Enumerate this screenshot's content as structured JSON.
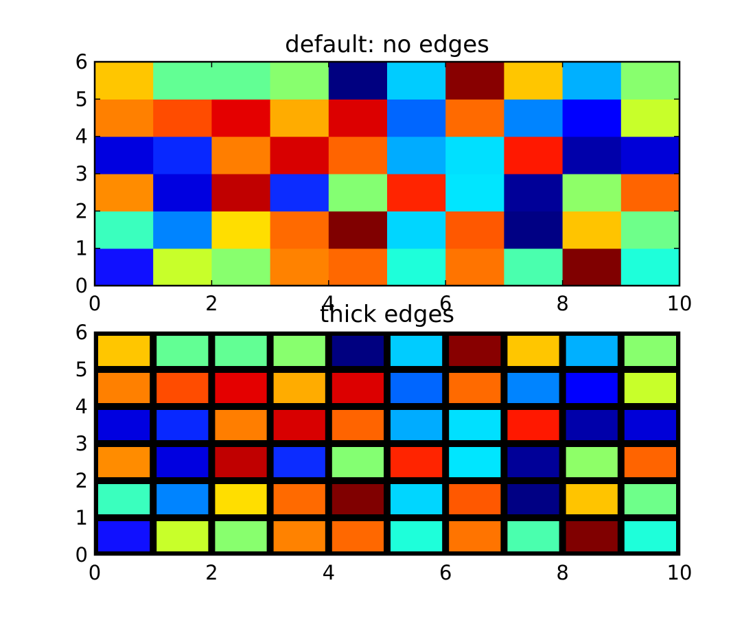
{
  "chart_data": [
    {
      "type": "heatmap",
      "title": "default: no edges",
      "xlabel": "",
      "ylabel": "",
      "xlim": [
        0,
        10
      ],
      "ylim": [
        0,
        6
      ],
      "xticks": [
        "0",
        "2",
        "4",
        "6",
        "8",
        "10"
      ],
      "yticks": [
        "0",
        "1",
        "2",
        "3",
        "4",
        "5",
        "6"
      ],
      "grid": false,
      "edges": "none",
      "rows": [
        [
          "#1010FF",
          "#C8FF2A",
          "#88FF6E",
          "#FF8200",
          "#FF6800",
          "#1EFFDA",
          "#FF7400",
          "#4AFFAE",
          "#800000",
          "#1EFFDA"
        ],
        [
          "#3AFFBE",
          "#0084FF",
          "#FFDE00",
          "#FF6A00",
          "#800000",
          "#00D6FF",
          "#FF5800",
          "#000084",
          "#FFC400",
          "#6EFF8A"
        ],
        [
          "#FF8C00",
          "#0000E0",
          "#C00000",
          "#0C2CFF",
          "#84FF72",
          "#FF2400",
          "#00E6FF",
          "#000098",
          "#8EFF68",
          "#FF6400"
        ],
        [
          "#0000E0",
          "#0828FF",
          "#FF7E00",
          "#D80000",
          "#FF6400",
          "#00ACFF",
          "#00E0FF",
          "#FF1800",
          "#0000AA",
          "#0000D8"
        ],
        [
          "#FF8000",
          "#FF4C00",
          "#E40000",
          "#FFAC00",
          "#DC0000",
          "#0066FF",
          "#FF6A00",
          "#0084FF",
          "#0000FF",
          "#C8FF2A"
        ],
        [
          "#FFC600",
          "#62FF94",
          "#62FF94",
          "#88FF6E",
          "#000080",
          "#00CCFF",
          "#880000",
          "#FFC600",
          "#00B0FF",
          "#88FF6E"
        ]
      ]
    },
    {
      "type": "heatmap",
      "title": "thick edges",
      "xlabel": "",
      "ylabel": "",
      "xlim": [
        0,
        10
      ],
      "ylim": [
        0,
        6
      ],
      "xticks": [
        "0",
        "2",
        "4",
        "6",
        "8",
        "10"
      ],
      "yticks": [
        "0",
        "1",
        "2",
        "3",
        "4",
        "5",
        "6"
      ],
      "grid": false,
      "edges": "thick black",
      "rows": [
        [
          "#1010FF",
          "#C8FF2A",
          "#88FF6E",
          "#FF8200",
          "#FF6800",
          "#1EFFDA",
          "#FF7400",
          "#4AFFAE",
          "#800000",
          "#1EFFDA"
        ],
        [
          "#3AFFBE",
          "#0084FF",
          "#FFDE00",
          "#FF6A00",
          "#800000",
          "#00D6FF",
          "#FF5800",
          "#000084",
          "#FFC400",
          "#6EFF8A"
        ],
        [
          "#FF8C00",
          "#0000E0",
          "#C00000",
          "#0C2CFF",
          "#84FF72",
          "#FF2400",
          "#00E6FF",
          "#000098",
          "#8EFF68",
          "#FF6400"
        ],
        [
          "#0000E0",
          "#0828FF",
          "#FF7E00",
          "#D80000",
          "#FF6400",
          "#00ACFF",
          "#00E0FF",
          "#FF1800",
          "#0000AA",
          "#0000D8"
        ],
        [
          "#FF8000",
          "#FF4C00",
          "#E40000",
          "#FFAC00",
          "#DC0000",
          "#0066FF",
          "#FF6A00",
          "#0084FF",
          "#0000FF",
          "#C8FF2A"
        ],
        [
          "#FFC600",
          "#62FF94",
          "#62FF94",
          "#88FF6E",
          "#000080",
          "#00CCFF",
          "#880000",
          "#FFC600",
          "#00B0FF",
          "#88FF6E"
        ]
      ]
    }
  ]
}
